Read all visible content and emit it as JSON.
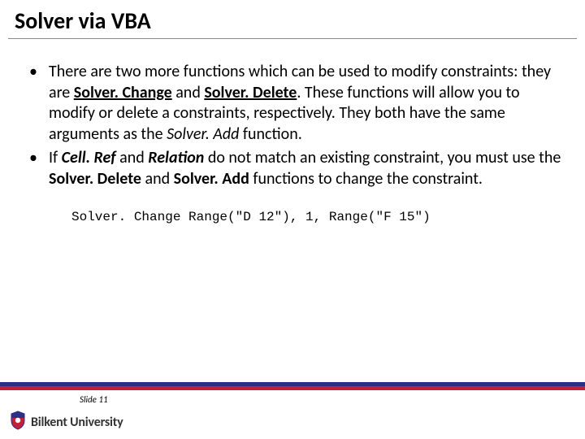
{
  "title": "Solver via VBA",
  "bullets": [
    {
      "segments": [
        {
          "t": "There are two more functions which can be used to modify constraints: they are "
        },
        {
          "t": "Solver. Change",
          "b": true,
          "u": true
        },
        {
          "t": " and "
        },
        {
          "t": "Solver. Delete",
          "b": true,
          "u": true
        },
        {
          "t": ". These functions will allow you to modify or delete a constraints, respectively. They both have the same arguments as the "
        },
        {
          "t": "Solver. Add",
          "i": true
        },
        {
          "t": " function."
        }
      ]
    },
    {
      "segments": [
        {
          "t": "If "
        },
        {
          "t": "Cell. Ref",
          "b": true,
          "i": true
        },
        {
          "t": " and "
        },
        {
          "t": "Relation",
          "b": true,
          "i": true
        },
        {
          "t": " do not match an existing constraint, you must use the "
        },
        {
          "t": "Solver. Delete",
          "b": true
        },
        {
          "t": " and "
        },
        {
          "t": "Solver. Add",
          "b": true
        },
        {
          "t": " functions to change the constraint."
        }
      ]
    }
  ],
  "code_line": "Solver. Change Range(\"D 12\"), 1, Range(\"F 15\")",
  "slide_label": "Slide 11",
  "logo_text": "Bilkent University",
  "colors": {
    "bar_top": "#2a2f88",
    "bar_bottom": "#c41e3a",
    "shield_red": "#c41e3a",
    "shield_blue": "#2a2f88"
  }
}
